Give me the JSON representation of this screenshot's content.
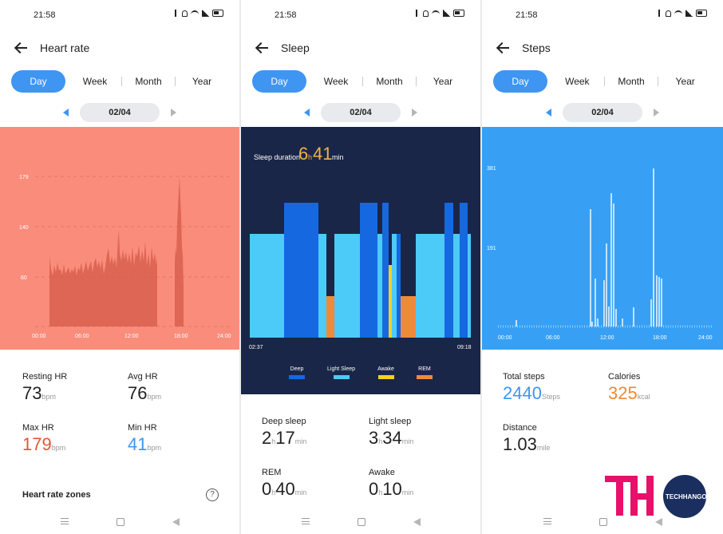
{
  "status": {
    "time": "21:58"
  },
  "tabs": [
    "Day",
    "Week",
    "Month",
    "Year"
  ],
  "date": "02/04",
  "heart": {
    "title": "Heart rate",
    "y_ticks": [
      "179",
      "140",
      "60"
    ],
    "x_ticks": [
      "00:00",
      "06:00",
      "12:00",
      "18:00",
      "24:00"
    ],
    "resting_label": "Resting HR",
    "resting_value": "73",
    "resting_unit": "bpm",
    "avg_label": "Avg HR",
    "avg_value": "76",
    "avg_unit": "bpm",
    "max_label": "Max HR",
    "max_value": "179",
    "max_unit": "bpm",
    "min_label": "Min HR",
    "min_value": "41",
    "min_unit": "bpm",
    "zones_label": "Heart rate zones",
    "help": "?"
  },
  "sleep": {
    "title": "Sleep",
    "duration_label": "Sleep duration",
    "duration_hours": "6",
    "duration_h": "h",
    "duration_min": "41",
    "duration_m": "min",
    "start_time": "02:37",
    "end_time": "09:18",
    "legend": [
      "Deep",
      "Light Sleep",
      "Awake",
      "REM"
    ],
    "deep_label": "Deep sleep",
    "deep_h": "2",
    "deep_m": "17",
    "light_label": "Light sleep",
    "light_h": "3",
    "light_m": "34",
    "rem_label": "REM",
    "rem_h": "0",
    "rem_m": "40",
    "awake_label": "Awake",
    "awake_h": "0",
    "awake_m": "10",
    "h_unit": "h",
    "m_unit": "min"
  },
  "steps": {
    "title": "Steps",
    "y_ticks": [
      "381",
      "191"
    ],
    "x_ticks": [
      "00:00",
      "06:00",
      "12:00",
      "18:00",
      "24:00"
    ],
    "total_label": "Total steps",
    "total_value": "2440",
    "total_unit": "Steps",
    "cal_label": "Calories",
    "cal_value": "325",
    "cal_unit": "kcal",
    "dist_label": "Distance",
    "dist_value": "1.03",
    "dist_unit": "mile"
  },
  "logo": {
    "mark": "TH",
    "text": "TECHHANGOUT"
  },
  "colors": {
    "accent": "#3e95f2",
    "hr_bg": "#fa8c7b",
    "sleep_bg": "#1a2647",
    "steps_bg": "#37a0f5",
    "deep": "#1668e0",
    "light": "#4ccaf8",
    "awake": "#f5d21c",
    "rem": "#f08a3a"
  }
}
